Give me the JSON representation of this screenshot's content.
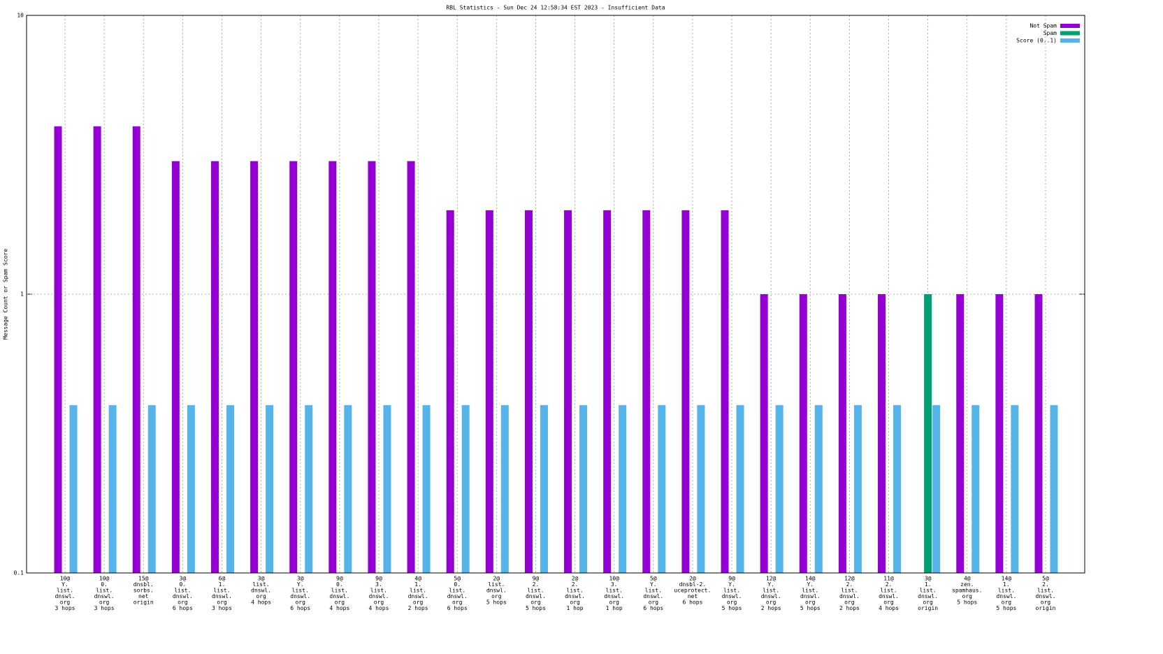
{
  "chart_data": {
    "type": "bar",
    "title": "RBL Statistics - Sun Dec 24 12:58:34 EST 2023 - Insufficient Data",
    "y_label": "Message Count or Spam Score",
    "log_y": true,
    "grid": true,
    "legend": "top-right",
    "ylim": [
      0.1,
      10
    ],
    "yticks": [
      0.1,
      1,
      10
    ],
    "categories": [
      [
        "10@",
        "Y.",
        "list.",
        "dnswl.",
        "org",
        "3 hops"
      ],
      [
        "10@",
        "0.",
        "list.",
        "dnswl.",
        "org",
        "3 hops"
      ],
      [
        "15@",
        "dnsbl.",
        "sorbs.",
        "net",
        "origin"
      ],
      [
        "3@",
        "0.",
        "list.",
        "dnswl.",
        "org",
        "6 hops"
      ],
      [
        "6@",
        "1.",
        "list.",
        "dnswl.",
        "org",
        "3 hops"
      ],
      [
        "3@",
        "list.",
        "dnswl.",
        "org",
        "4 hops"
      ],
      [
        "3@",
        "Y.",
        "list.",
        "dnswl.",
        "org",
        "6 hops"
      ],
      [
        "9@",
        "0.",
        "list.",
        "dnswl.",
        "org",
        "4 hops"
      ],
      [
        "9@",
        "3.",
        "list.",
        "dnswl.",
        "org",
        "4 hops"
      ],
      [
        "4@",
        "1.",
        "list.",
        "dnswl.",
        "org",
        "2 hops"
      ],
      [
        "5@",
        "0.",
        "list.",
        "dnswl.",
        "org",
        "6 hops"
      ],
      [
        "2@",
        "list.",
        "dnswl.",
        "org",
        "5 hops"
      ],
      [
        "9@",
        "2.",
        "list.",
        "dnswl.",
        "org",
        "5 hops"
      ],
      [
        "2@",
        "2.",
        "list.",
        "dnswl.",
        "org",
        "1 hop"
      ],
      [
        "10@",
        "3.",
        "list.",
        "dnswl.",
        "org",
        "1 hop"
      ],
      [
        "5@",
        "Y.",
        "list.",
        "dnswl.",
        "org",
        "6 hops"
      ],
      [
        "2@",
        "dnsbl-2.",
        "uceprotect.",
        "net",
        "6 hops"
      ],
      [
        "9@",
        "Y.",
        "list.",
        "dnswl.",
        "org",
        "5 hops"
      ],
      [
        "12@",
        "Y.",
        "list.",
        "dnswl.",
        "org",
        "2 hops"
      ],
      [
        "14@",
        "Y.",
        "list.",
        "dnswl.",
        "org",
        "5 hops"
      ],
      [
        "12@",
        "2.",
        "list.",
        "dnswl.",
        "org",
        "2 hops"
      ],
      [
        "11@",
        "2.",
        "list.",
        "dnswl.",
        "org",
        "4 hops"
      ],
      [
        "3@",
        "1.",
        "list.",
        "dnswl.",
        "org",
        "origin"
      ],
      [
        "4@",
        "zen.",
        "spamhaus.",
        "org",
        "5 hops"
      ],
      [
        "14@",
        "1.",
        "list.",
        "dnswl.",
        "org",
        "5 hops"
      ],
      [
        "5@",
        "2.",
        "list.",
        "dnswl.",
        "org",
        "origin"
      ]
    ],
    "series": [
      {
        "name": "Not Spam",
        "color": "#9400d3",
        "values": [
          4,
          4,
          4,
          3,
          3,
          3,
          3,
          3,
          3,
          3,
          2,
          2,
          2,
          2,
          2,
          2,
          2,
          2,
          1,
          1,
          1,
          1,
          null,
          1,
          1,
          1
        ]
      },
      {
        "name": "Spam",
        "color": "#009e73",
        "values": [
          null,
          null,
          null,
          null,
          null,
          null,
          null,
          null,
          null,
          null,
          null,
          null,
          null,
          null,
          null,
          null,
          null,
          null,
          null,
          null,
          null,
          null,
          1,
          null,
          null,
          null
        ]
      },
      {
        "name": "Score (0..1)",
        "color": "#56b4e9",
        "values": [
          0.4,
          0.4,
          0.4,
          0.4,
          0.4,
          0.4,
          0.4,
          0.4,
          0.4,
          0.4,
          0.4,
          0.4,
          0.4,
          0.4,
          0.4,
          0.4,
          0.4,
          0.4,
          0.4,
          0.4,
          0.4,
          0.4,
          0.4,
          0.4,
          0.4,
          0.4
        ]
      }
    ]
  }
}
